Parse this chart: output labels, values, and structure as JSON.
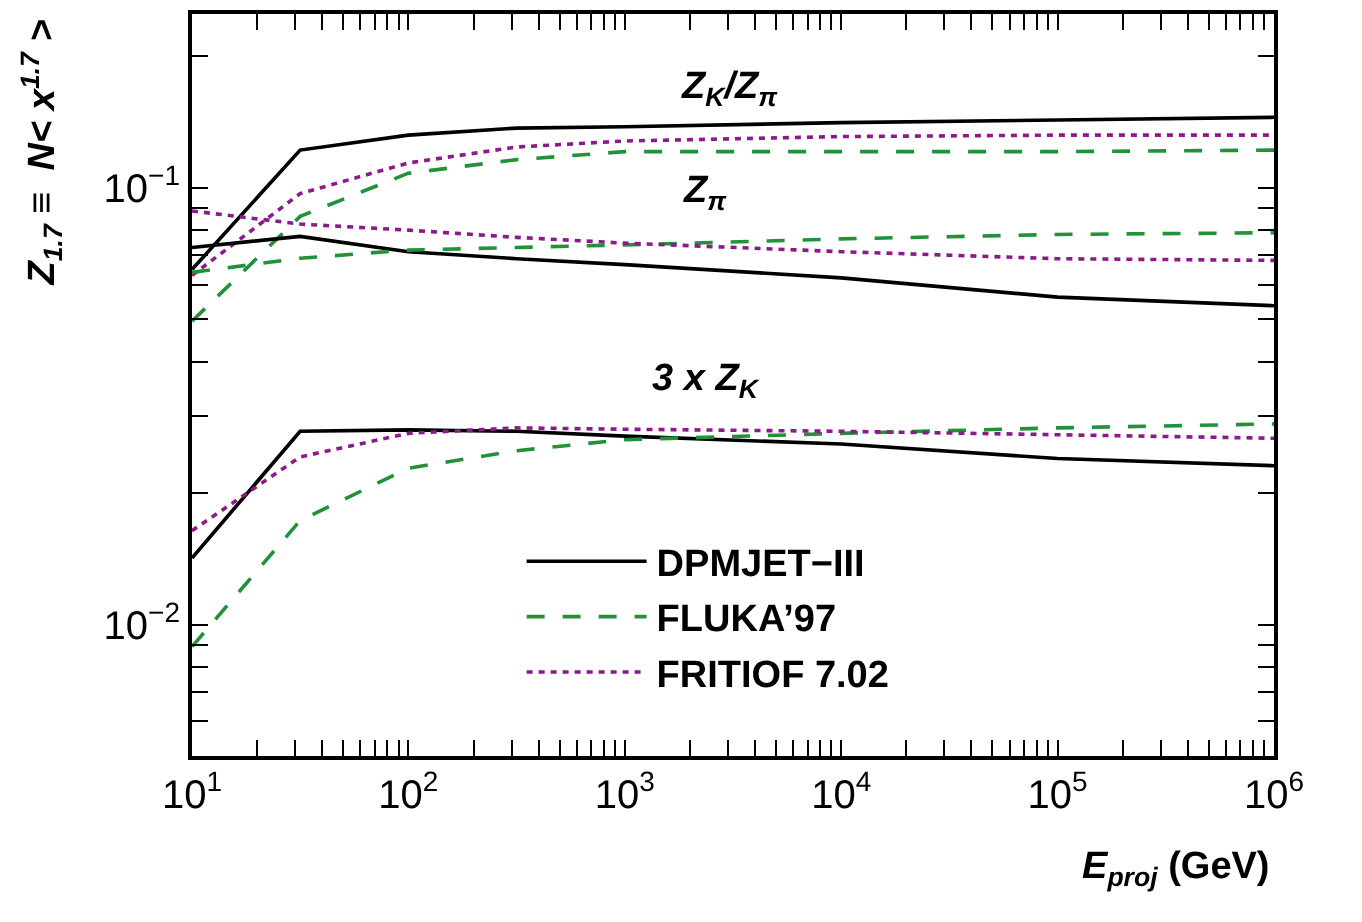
{
  "chart_data": {
    "type": "line",
    "xlabel": "E$_{proj}$ (GeV)",
    "ylabel": "Z$_{1.7}$ ≡  N< x$^{1.7}$ >",
    "x": [
      10,
      31.6,
      100,
      316,
      1000,
      10000,
      100000,
      1000000
    ],
    "series": [
      {
        "name": "DPMJET−III",
        "color": "#000000",
        "line_style": "solid",
        "values": [
          0.065,
          0.122,
          0.132,
          0.137,
          0.138,
          0.141,
          0.143,
          0.145
        ]
      },
      {
        "name": "FLUKA’97",
        "color": "#22913a",
        "line_style": "dashed",
        "values": [
          0.0495,
          0.086,
          0.108,
          0.116,
          0.121,
          0.121,
          0.121,
          0.122
        ]
      },
      {
        "name": "FRITIOF 7.02",
        "color": "#8b1a8b",
        "line_style": "dotted",
        "values": [
          0.063,
          0.097,
          0.114,
          0.124,
          0.128,
          0.131,
          0.132,
          0.132
        ]
      },
      {
        "color": "#000000",
        "line_style": "solid",
        "values": [
          0.073,
          0.0774,
          0.0714,
          0.0688,
          0.0667,
          0.0622,
          0.0562,
          0.0537
        ]
      },
      {
        "color": "#22913a",
        "line_style": "dashed",
        "values": [
          0.064,
          0.069,
          0.072,
          0.073,
          0.074,
          0.0764,
          0.0782,
          0.0789
        ]
      },
      {
        "color": "#8b1a8b",
        "line_style": "dotted",
        "values": [
          0.0885,
          0.0826,
          0.08,
          0.077,
          0.0747,
          0.0714,
          0.0688,
          0.0682
        ]
      },
      {
        "color": "#000000",
        "line_style": "solid",
        "values": [
          0.0142,
          0.0277,
          0.0279,
          0.0277,
          0.027,
          0.0259,
          0.024,
          0.0231
        ]
      },
      {
        "color": "#22913a",
        "line_style": "dashed",
        "values": [
          0.0089,
          0.0173,
          0.0228,
          0.025,
          0.0265,
          0.0274,
          0.0282,
          0.0288
        ]
      },
      {
        "color": "#8b1a8b",
        "line_style": "dotted",
        "values": [
          0.0164,
          0.0242,
          0.0274,
          0.0282,
          0.028,
          0.0277,
          0.0272,
          0.0267
        ]
      }
    ],
    "annotations": [
      "Z$_{K}$/Z$_{π}$",
      "Z$_{π}$",
      "3 x Z$_{K}$"
    ],
    "log": "xy",
    "xlim": [
      10,
      1000000
    ],
    "ylim": [
      0.005,
      0.25
    ],
    "xticks": [
      {
        "value": 10,
        "label": "10$^{1}$"
      },
      {
        "value": 100,
        "label": "10$^{2}$"
      },
      {
        "value": 1000,
        "label": "10$^{3}$"
      },
      {
        "value": 10000,
        "label": "10$^{4}$"
      },
      {
        "value": 100000,
        "label": "10$^{5}$"
      },
      {
        "value": 1000000,
        "label": "10$^{6}$"
      },
      {
        "value": 20,
        "label": null
      },
      {
        "value": 30,
        "label": null
      },
      {
        "value": 40,
        "label": null
      },
      {
        "value": 50,
        "label": null
      },
      {
        "value": 60,
        "label": null
      },
      {
        "value": 70,
        "label": null
      },
      {
        "value": 80,
        "label": null
      },
      {
        "value": 90,
        "label": null
      },
      {
        "value": 200,
        "label": null
      },
      {
        "value": 300,
        "label": null
      },
      {
        "value": 400,
        "label": null
      },
      {
        "value": 500,
        "label": null
      },
      {
        "value": 600,
        "label": null
      },
      {
        "value": 700,
        "label": null
      },
      {
        "value": 800,
        "label": null
      },
      {
        "value": 900,
        "label": null
      },
      {
        "value": 2000,
        "label": null
      },
      {
        "value": 3000,
        "label": null
      },
      {
        "value": 4000,
        "label": null
      },
      {
        "value": 5000,
        "label": null
      },
      {
        "value": 6000,
        "label": null
      },
      {
        "value": 7000,
        "label": null
      },
      {
        "value": 8000,
        "label": null
      },
      {
        "value": 9000,
        "label": null
      },
      {
        "value": 20000,
        "label": null
      },
      {
        "value": 30000,
        "label": null
      },
      {
        "value": 40000,
        "label": null
      },
      {
        "value": 50000,
        "label": null
      },
      {
        "value": 60000,
        "label": null
      },
      {
        "value": 70000,
        "label": null
      },
      {
        "value": 80000,
        "label": null
      },
      {
        "value": 90000,
        "label": null
      },
      {
        "value": 200000,
        "label": null
      },
      {
        "value": 300000,
        "label": null
      },
      {
        "value": 400000,
        "label": null
      },
      {
        "value": 500000,
        "label": null
      },
      {
        "value": 600000,
        "label": null
      },
      {
        "value": 700000,
        "label": null
      },
      {
        "value": 800000,
        "label": null
      },
      {
        "value": 900000,
        "label": null
      }
    ],
    "yticks": [
      {
        "value": 0.01,
        "label": "10$^{−2}$"
      },
      {
        "value": 0.1,
        "label": "10$^{−1}$"
      },
      {
        "value": 0.006,
        "label": null
      },
      {
        "value": 0.007,
        "label": null
      },
      {
        "value": 0.008,
        "label": null
      },
      {
        "value": 0.009,
        "label": null
      },
      {
        "value": 0.02,
        "label": null
      },
      {
        "value": 0.03,
        "label": null
      },
      {
        "value": 0.04,
        "label": null
      },
      {
        "value": 0.05,
        "label": null
      },
      {
        "value": 0.06,
        "label": null
      },
      {
        "value": 0.07,
        "label": null
      },
      {
        "value": 0.08,
        "label": null
      },
      {
        "value": 0.09,
        "label": null
      },
      {
        "value": 0.2,
        "label": null
      }
    ],
    "legend": "bottom"
  }
}
